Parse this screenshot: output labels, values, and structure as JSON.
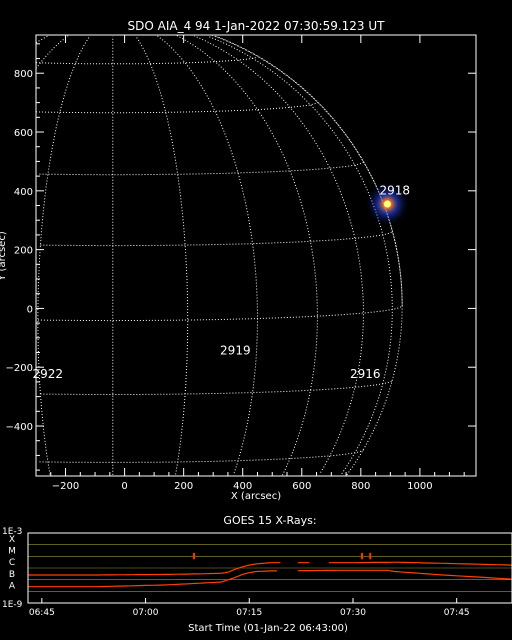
{
  "chart_data": [
    {
      "type": "scatter",
      "title": "SDO AIA_4 94  1-Jan-2022 07:30:59.123 UT",
      "xlabel": "X (arcsec)",
      "ylabel": "Y (arcsec)",
      "xlim": [
        -300,
        1190
      ],
      "ylim": [
        -570,
        930
      ],
      "x_ticks": [
        -200,
        0,
        200,
        400,
        600,
        800,
        1000
      ],
      "y_ticks": [
        -400,
        -200,
        0,
        200,
        400,
        600,
        800
      ],
      "tick_labels_x": [
        "−200",
        "0",
        "200",
        "400",
        "600",
        "800",
        "1000"
      ],
      "tick_labels_y": [
        "−400",
        "−200",
        "0",
        "200",
        "400",
        "600",
        "800"
      ],
      "grid_style": "dotted heliographic grid",
      "active_regions": [
        {
          "label": "2918",
          "x": 915,
          "y": 400
        },
        {
          "label": "2919",
          "x": 375,
          "y": -145
        },
        {
          "label": "2916",
          "x": 815,
          "y": -225
        },
        {
          "label": "2922",
          "x": -260,
          "y": -225
        }
      ],
      "flare": {
        "x": 890,
        "y": 355
      },
      "colors": {
        "background": "#000000",
        "grid": "#ffffff",
        "text": "#ffffff",
        "flare_core": "#ffff80",
        "flare_glow": "#3050ff"
      }
    },
    {
      "type": "line",
      "title": "GOES 15 X-Rays:",
      "xlabel": "Start Time (01-Jan-22 06:43:00)",
      "y_scale": "log",
      "ylim": [
        "1E-9",
        "1E-3"
      ],
      "y_end_labels": [
        "1E-3",
        "1E-9"
      ],
      "class_labels": [
        "X",
        "M",
        "C",
        "B",
        "A"
      ],
      "x_ticks": [
        "06:45",
        "07:00",
        "07:15",
        "07:30",
        "07:45"
      ],
      "x_range_minutes": [
        0,
        70
      ],
      "series": [
        {
          "color": "#ff4000",
          "points": [
            [
              0,
              -6.6
            ],
            [
              10,
              -6.6
            ],
            [
              20,
              -6.55
            ],
            [
              25,
              -6.5
            ],
            [
              28,
              -6.45
            ],
            [
              29,
              -6.35
            ],
            [
              30,
              -6.1
            ],
            [
              31,
              -5.9
            ],
            [
              32,
              -5.75
            ],
            [
              33,
              -5.65
            ],
            [
              34,
              -5.6
            ],
            [
              35,
              -5.55
            ],
            [
              40,
              -5.55
            ],
            [
              47,
              -5.55
            ],
            [
              50,
              -5.52
            ],
            [
              52,
              -5.52
            ],
            [
              53,
              -5.5
            ],
            [
              60,
              -5.6
            ],
            [
              70,
              -5.75
            ]
          ],
          "gaps": [
            [
              36.5,
              39
            ],
            [
              41,
              43.5
            ]
          ]
        },
        {
          "color": "#ff4000",
          "points": [
            [
              0,
              -7.6
            ],
            [
              10,
              -7.6
            ],
            [
              20,
              -7.45
            ],
            [
              25,
              -7.3
            ],
            [
              28,
              -7.2
            ],
            [
              29,
              -7.0
            ],
            [
              30,
              -6.8
            ],
            [
              31,
              -6.55
            ],
            [
              32,
              -6.4
            ],
            [
              33,
              -6.3
            ],
            [
              35,
              -6.25
            ],
            [
              45,
              -6.2
            ],
            [
              52,
              -6.2
            ],
            [
              53,
              -6.3
            ],
            [
              60,
              -6.6
            ],
            [
              70,
              -6.95
            ]
          ],
          "gaps": [
            [
              36.5,
              38.5
            ],
            [
              42,
              43
            ]
          ]
        }
      ],
      "flare_markers": [
        24,
        48.3,
        49.5
      ],
      "colors": {
        "background": "#000000",
        "level_lines": "#ffff60",
        "text": "#ffffff",
        "marker": "#ff3300"
      }
    }
  ]
}
